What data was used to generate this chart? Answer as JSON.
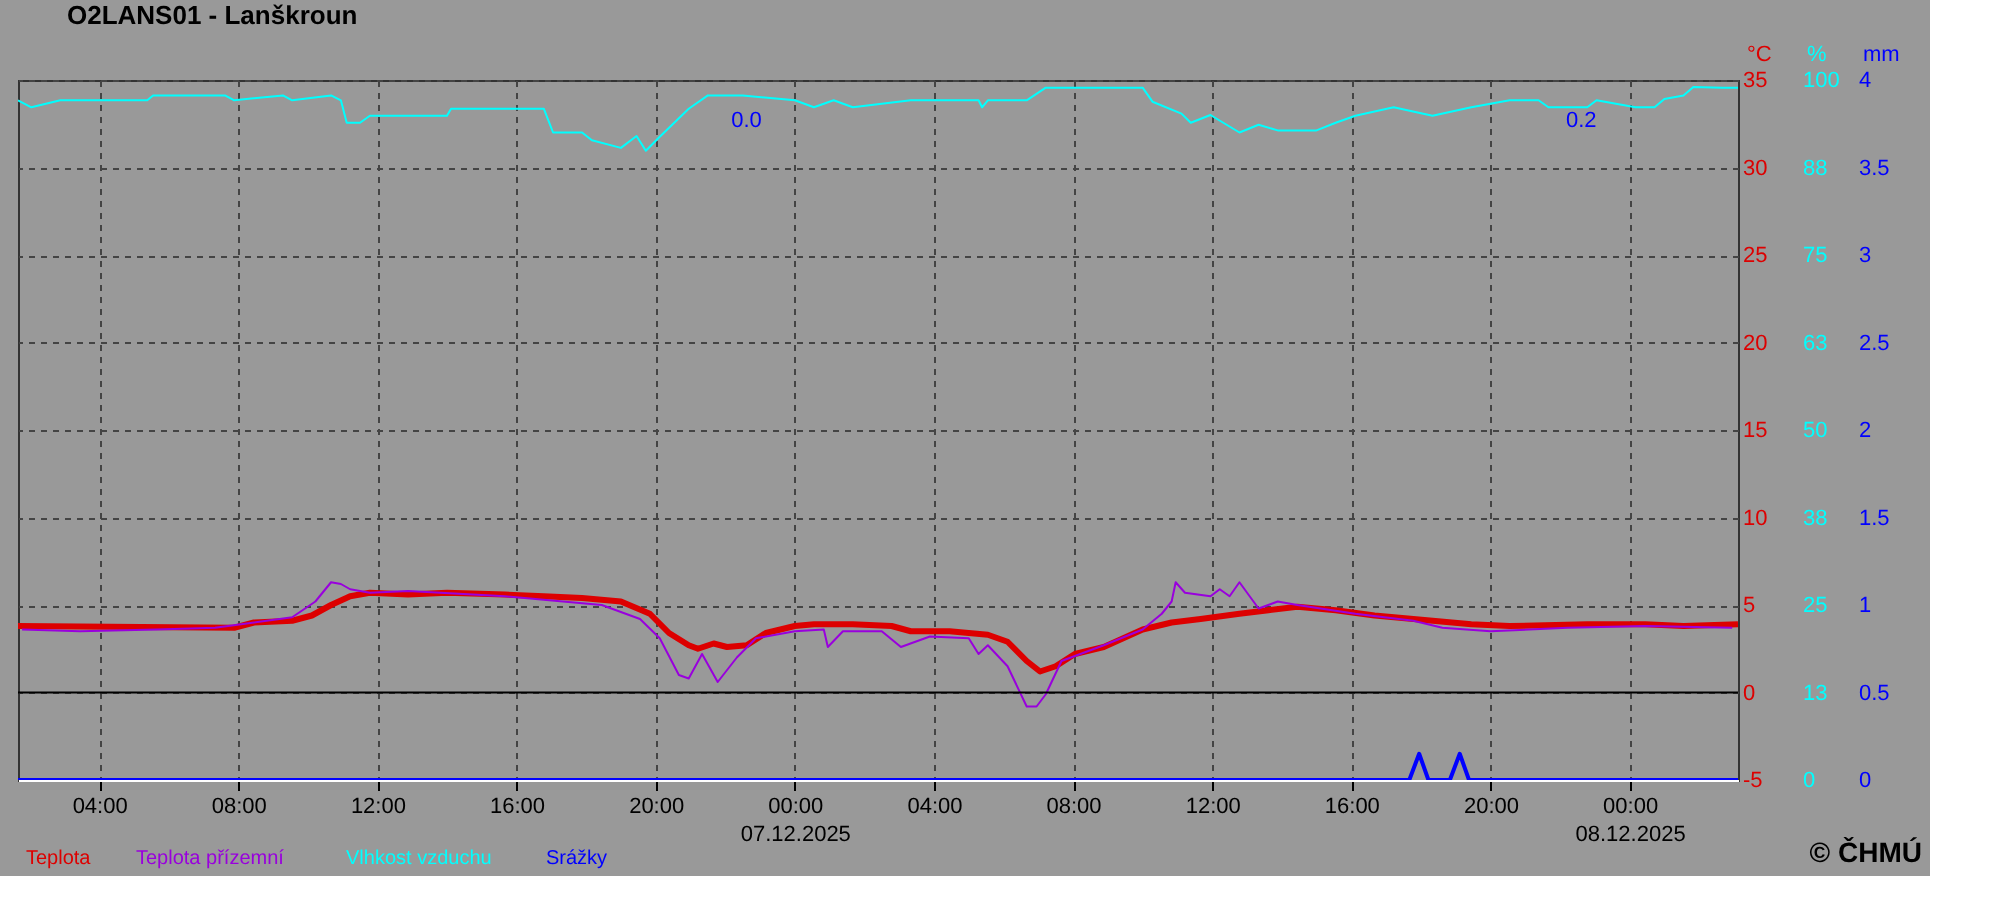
{
  "chart_data": {
    "type": "line",
    "title": "O2LANS01 - Lanškroun",
    "ylabel": "°C",
    "y2label": "%",
    "y3label": "mm",
    "xlim": [
      "2025-12-06T01:40",
      "2025-12-08T03:07"
    ],
    "xticks": [
      {
        "value": "2025-12-06T04:00",
        "label": "04:00"
      },
      {
        "value": "2025-12-06T08:00",
        "label": "08:00"
      },
      {
        "value": "2025-12-06T12:00",
        "label": "12:00"
      },
      {
        "value": "2025-12-06T16:00",
        "label": "16:00"
      },
      {
        "value": "2025-12-06T20:00",
        "label": "20:00"
      },
      {
        "value": "2025-12-07T00:00",
        "label": "00:00\n07.12.2025"
      },
      {
        "value": "2025-12-07T04:00",
        "label": "04:00"
      },
      {
        "value": "2025-12-07T08:00",
        "label": "08:00"
      },
      {
        "value": "2025-12-07T12:00",
        "label": "12:00"
      },
      {
        "value": "2025-12-07T16:00",
        "label": "16:00"
      },
      {
        "value": "2025-12-07T20:00",
        "label": "20:00"
      },
      {
        "value": "2025-12-08T00:00",
        "label": "00:00\n08.12.2025"
      }
    ],
    "ylim": [
      -5,
      35
    ],
    "yticks": [
      -5,
      0,
      5,
      10,
      15,
      20,
      25,
      30,
      35
    ],
    "y2lim": [
      0,
      100
    ],
    "y2ticks": [
      0,
      {
        "value": 12.5,
        "label": "13"
      },
      25,
      {
        "value": 37.5,
        "label": "38"
      },
      50,
      {
        "value": 62.5,
        "label": "63"
      },
      75,
      {
        "value": 87.5,
        "label": "88"
      },
      100
    ],
    "y3lim": [
      0,
      4
    ],
    "y3ticks": [
      0,
      0.5,
      1,
      1.5,
      2,
      2.5,
      3,
      3.5,
      4
    ],
    "grid": true,
    "legend": "bottom left",
    "ref_lines": [
      {
        "axis": "y",
        "value": 0,
        "color": "#000000"
      }
    ],
    "annotations": [
      {
        "text": "0.0",
        "x": "2025-12-06T23:10",
        "y": 33.9
      },
      {
        "text": "0.2",
        "x": "2025-12-07T23:10",
        "y": 33.9
      },
      "© ČHMÚ"
    ],
    "series": [
      {
        "name": "Teplota",
        "color": "#dd0000",
        "x": [
          "2025-12-06T01:40",
          "2025-12-06T07:53",
          "2025-12-06T08:27",
          "2025-12-06T09:33",
          "2025-12-06T10:07",
          "2025-12-06T10:40",
          "2025-12-06T11:13",
          "2025-12-06T11:47",
          "2025-12-06T12:53",
          "2025-12-06T14:00",
          "2025-12-06T15:40",
          "2025-12-06T16:47",
          "2025-12-06T17:53",
          "2025-12-06T19:00",
          "2025-12-06T19:50",
          "2025-12-06T20:23",
          "2025-12-06T20:57",
          "2025-12-06T21:13",
          "2025-12-06T21:40",
          "2025-12-06T22:03",
          "2025-12-06T22:37",
          "2025-12-06T23:10",
          "2025-12-07T00:00",
          "2025-12-07T00:33",
          "2025-12-07T01:40",
          "2025-12-07T02:47",
          "2025-12-07T03:20",
          "2025-12-07T04:27",
          "2025-12-07T05:33",
          "2025-12-07T06:07",
          "2025-12-07T06:40",
          "2025-12-07T07:03",
          "2025-12-07T07:30",
          "2025-12-07T08:03",
          "2025-12-07T08:53",
          "2025-12-07T10:00",
          "2025-12-07T10:50",
          "2025-12-07T11:40",
          "2025-12-07T12:47",
          "2025-12-07T13:37",
          "2025-12-07T14:27",
          "2025-12-07T15:33",
          "2025-12-07T16:40",
          "2025-12-07T17:47",
          "2025-12-07T19:27",
          "2025-12-07T20:33",
          "2025-12-07T22:47",
          "2025-12-08T00:27",
          "2025-12-08T01:33",
          "2025-12-08T03:07"
        ],
        "values": [
          3.8,
          3.7,
          4.0,
          4.1,
          4.4,
          5.0,
          5.5,
          5.7,
          5.6,
          5.7,
          5.6,
          5.5,
          5.4,
          5.2,
          4.5,
          3.4,
          2.7,
          2.5,
          2.8,
          2.6,
          2.7,
          3.4,
          3.8,
          3.9,
          3.9,
          3.8,
          3.5,
          3.5,
          3.3,
          2.9,
          1.8,
          1.2,
          1.5,
          2.2,
          2.6,
          3.6,
          4.0,
          4.2,
          4.5,
          4.7,
          4.9,
          4.7,
          4.4,
          4.2,
          3.9,
          3.8,
          3.9,
          3.9,
          3.8,
          3.9
        ]
      },
      {
        "name": "Teplota přízemní",
        "color": "#9900dd",
        "x": [
          "2025-12-06T01:47",
          "2025-12-06T03:27",
          "2025-12-06T05:40",
          "2025-12-06T07:20",
          "2025-12-06T09:33",
          "2025-12-06T10:13",
          "2025-12-06T10:40",
          "2025-12-06T10:57",
          "2025-12-06T11:13",
          "2025-12-06T11:47",
          "2025-12-06T12:53",
          "2025-12-06T15:40",
          "2025-12-06T17:20",
          "2025-12-06T18:27",
          "2025-12-06T19:33",
          "2025-12-06T20:07",
          "2025-12-06T20:40",
          "2025-12-06T20:57",
          "2025-12-06T21:20",
          "2025-12-06T21:47",
          "2025-12-06T22:20",
          "2025-12-06T22:53",
          "2025-12-07T00:00",
          "2025-12-07T00:50",
          "2025-12-07T00:57",
          "2025-12-07T01:23",
          "2025-12-07T02:30",
          "2025-12-07T03:03",
          "2025-12-07T03:53",
          "2025-12-07T05:00",
          "2025-12-07T05:17",
          "2025-12-07T05:33",
          "2025-12-07T06:07",
          "2025-12-07T06:40",
          "2025-12-07T06:57",
          "2025-12-07T07:13",
          "2025-12-07T07:40",
          "2025-12-07T08:53",
          "2025-12-07T10:00",
          "2025-12-07T10:33",
          "2025-12-07T10:50",
          "2025-12-07T10:57",
          "2025-12-07T11:13",
          "2025-12-07T11:57",
          "2025-12-07T12:13",
          "2025-12-07T12:30",
          "2025-12-07T12:47",
          "2025-12-07T13:20",
          "2025-12-07T13:53",
          "2025-12-07T14:27",
          "2025-12-07T16:07",
          "2025-12-07T17:47",
          "2025-12-07T18:37",
          "2025-12-07T20:00",
          "2025-12-07T22:13",
          "2025-12-08T00:27",
          "2025-12-08T02:57"
        ],
        "values": [
          3.6,
          3.5,
          3.6,
          3.7,
          4.3,
          5.2,
          6.3,
          6.2,
          5.9,
          5.7,
          5.8,
          5.5,
          5.2,
          5.0,
          4.2,
          3.1,
          1.0,
          0.8,
          2.2,
          0.6,
          2.0,
          3.1,
          3.5,
          3.6,
          2.6,
          3.5,
          3.5,
          2.6,
          3.2,
          3.1,
          2.2,
          2.7,
          1.5,
          -0.8,
          -0.8,
          -0.1,
          1.8,
          2.7,
          3.6,
          4.5,
          5.2,
          6.3,
          5.7,
          5.5,
          5.9,
          5.5,
          6.3,
          4.8,
          5.2,
          5.0,
          4.5,
          4.1,
          3.7,
          3.5,
          3.7,
          3.8,
          3.7
        ]
      },
      {
        "name": "Vlhkost vzduchu",
        "color": "#00ffff",
        "axis": "y2",
        "x": [
          "2025-12-06T01:40",
          "2025-12-06T02:03",
          "2025-12-06T02:53",
          "2025-12-06T05:23",
          "2025-12-06T05:33",
          "2025-12-06T07:37",
          "2025-12-06T07:53",
          "2025-12-06T09:17",
          "2025-12-06T09:33",
          "2025-12-06T10:40",
          "2025-12-06T10:57",
          "2025-12-06T11:07",
          "2025-12-06T11:30",
          "2025-12-06T11:47",
          "2025-12-06T14:00",
          "2025-12-06T14:07",
          "2025-12-06T16:47",
          "2025-12-06T17:03",
          "2025-12-06T17:53",
          "2025-12-06T18:10",
          "2025-12-06T19:00",
          "2025-12-06T19:27",
          "2025-12-06T19:43",
          "2025-12-06T20:07",
          "2025-12-06T20:57",
          "2025-12-06T21:30",
          "2025-12-06T22:30",
          "2025-12-07T00:00",
          "2025-12-07T00:33",
          "2025-12-07T01:07",
          "2025-12-07T01:40",
          "2025-12-07T03:20",
          "2025-12-07T05:17",
          "2025-12-07T05:23",
          "2025-12-07T05:33",
          "2025-12-07T06:40",
          "2025-12-07T07:13",
          "2025-12-07T10:00",
          "2025-12-07T10:17",
          "2025-12-07T11:07",
          "2025-12-07T11:23",
          "2025-12-07T11:57",
          "2025-12-07T12:47",
          "2025-12-07T13:20",
          "2025-12-07T13:53",
          "2025-12-07T15:00",
          "2025-12-07T15:33",
          "2025-12-07T16:07",
          "2025-12-07T17:13",
          "2025-12-07T18:20",
          "2025-12-07T19:27",
          "2025-12-07T20:33",
          "2025-12-07T21:23",
          "2025-12-07T21:40",
          "2025-12-07T22:47",
          "2025-12-07T23:03",
          "2025-12-08T00:10",
          "2025-12-08T00:43",
          "2025-12-08T01:00",
          "2025-12-08T01:33",
          "2025-12-08T01:50",
          "2025-12-08T02:40",
          "2025-12-08T03:07"
        ],
        "values": [
          97.1,
          96.1,
          97.1,
          97.1,
          97.8,
          97.8,
          97.1,
          97.8,
          97.1,
          97.8,
          97.1,
          93.9,
          93.9,
          94.9,
          94.9,
          95.9,
          95.9,
          92.5,
          92.5,
          91.4,
          90.3,
          92.0,
          89.9,
          91.9,
          95.9,
          97.8,
          97.8,
          97.1,
          96.1,
          97.1,
          96.1,
          97.1,
          97.1,
          96.1,
          97.1,
          97.1,
          98.9,
          98.9,
          96.9,
          95.2,
          93.9,
          95.0,
          92.5,
          93.6,
          92.8,
          92.8,
          93.9,
          94.9,
          96.1,
          94.9,
          96.1,
          97.1,
          97.1,
          96.1,
          96.1,
          97.1,
          96.1,
          96.1,
          97.3,
          97.8,
          99.0,
          98.9,
          98.9
        ]
      },
      {
        "name": "Srážky",
        "color": "#0000ff",
        "axis": "y3",
        "x": [
          "2025-12-06T01:40",
          "2025-12-07T17:40",
          "2025-12-07T17:57",
          "2025-12-07T18:13",
          "2025-12-07T18:50",
          "2025-12-07T19:07",
          "2025-12-07T19:23",
          "2025-12-08T03:07"
        ],
        "values": [
          0,
          0,
          0.15,
          0,
          0,
          0.15,
          0,
          0
        ]
      }
    ]
  }
}
